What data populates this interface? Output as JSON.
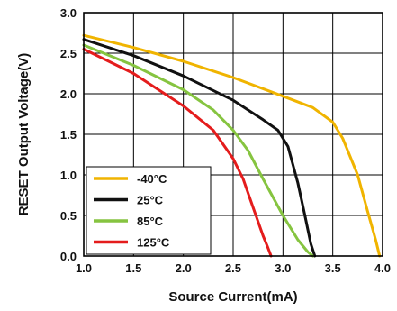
{
  "chart_data": {
    "type": "line",
    "title": "",
    "xlabel": "Source Current(mA)",
    "ylabel": "RESET Output Voltage(V)",
    "xlim": [
      1.0,
      4.0
    ],
    "ylim": [
      0.0,
      3.0
    ],
    "x_ticks": [
      "1.0",
      "1.5",
      "2.0",
      "2.5",
      "3.0",
      "3.5",
      "4.0"
    ],
    "y_ticks": [
      "0.0",
      "0.5",
      "1.0",
      "1.5",
      "2.0",
      "2.5",
      "3.0"
    ],
    "grid": true,
    "legend_position": "bottom-left",
    "series": [
      {
        "name": "-40°C",
        "color": "#f0b400",
        "x": [
          1.0,
          1.5,
          2.0,
          2.5,
          3.0,
          3.3,
          3.5,
          3.6,
          3.75,
          3.85,
          3.93,
          3.97
        ],
        "y": [
          2.72,
          2.57,
          2.4,
          2.2,
          1.97,
          1.83,
          1.65,
          1.45,
          1.0,
          0.55,
          0.2,
          0.0
        ]
      },
      {
        "name": "25°C",
        "color": "#111111",
        "x": [
          1.0,
          1.5,
          2.0,
          2.5,
          2.8,
          2.95,
          3.05,
          3.15,
          3.22,
          3.28,
          3.32
        ],
        "y": [
          2.67,
          2.47,
          2.22,
          1.92,
          1.68,
          1.55,
          1.35,
          0.9,
          0.5,
          0.15,
          0.0
        ]
      },
      {
        "name": "85°C",
        "color": "#86c440",
        "x": [
          1.0,
          1.5,
          2.0,
          2.3,
          2.5,
          2.65,
          2.8,
          3.0,
          3.15,
          3.25,
          3.3
        ],
        "y": [
          2.6,
          2.35,
          2.05,
          1.8,
          1.55,
          1.3,
          0.95,
          0.5,
          0.2,
          0.05,
          0.0
        ]
      },
      {
        "name": "125°C",
        "color": "#e41c1c",
        "x": [
          1.0,
          1.5,
          2.0,
          2.3,
          2.5,
          2.6,
          2.7,
          2.8,
          2.85,
          2.88
        ],
        "y": [
          2.55,
          2.25,
          1.85,
          1.55,
          1.2,
          0.95,
          0.6,
          0.25,
          0.1,
          0.0
        ]
      }
    ]
  }
}
